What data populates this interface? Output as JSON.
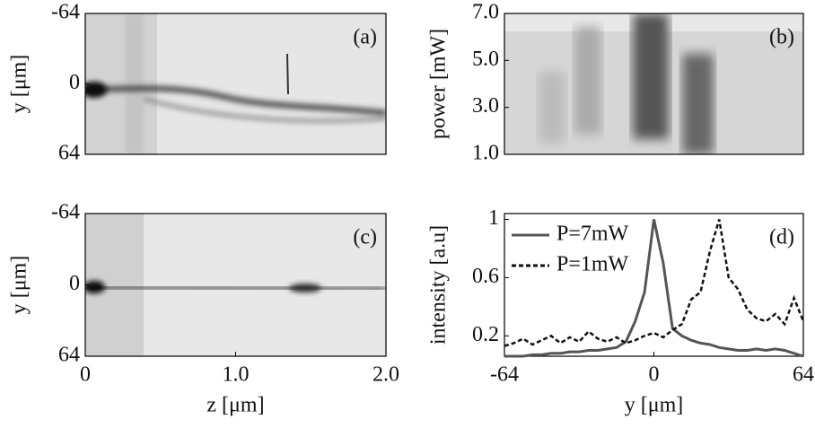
{
  "chart_data": [
    {
      "type": "image",
      "label": "(a)",
      "ylabel": "y [μm]",
      "ylim": [
        -64,
        64
      ],
      "yticks": [
        -64,
        0,
        64
      ],
      "y_reversed": true
    },
    {
      "type": "image",
      "label": "(b)",
      "ylabel": "power [mW]",
      "ylim": [
        1,
        7
      ],
      "yticks": [
        {
          "value": 1,
          "label": "1.0"
        },
        {
          "value": 3,
          "label": "3.0"
        },
        {
          "value": 5,
          "label": "5.0"
        },
        {
          "value": 7,
          "label": "7.0"
        }
      ]
    },
    {
      "type": "image",
      "label": "(c)",
      "ylabel": "y [μm]",
      "xlabel": "z [μm]",
      "ylim": [
        -64,
        64
      ],
      "yticks": [
        -64,
        0,
        64
      ],
      "y_reversed": true,
      "xlim": [
        0,
        2
      ],
      "xticks": [
        0,
        {
          "value": 1,
          "label": "1.0"
        },
        {
          "value": 2,
          "label": "2.0"
        }
      ]
    },
    {
      "type": "line",
      "label": "(d)",
      "ylabel": "intensity [a.u]",
      "xlabel": "y [μm]",
      "xlim": [
        -64,
        64
      ],
      "xticks": [
        -64,
        0,
        64
      ],
      "ylim": [
        0.06,
        1.04
      ],
      "yticks": [
        0.2,
        0.6,
        1
      ],
      "legend": "upper-left",
      "x": [
        -64,
        -60,
        -56,
        -52,
        -48,
        -44,
        -40,
        -36,
        -32,
        -28,
        -24,
        -20,
        -16,
        -12,
        -8,
        -4,
        0,
        4,
        8,
        12,
        16,
        20,
        24,
        28,
        32,
        36,
        40,
        44,
        48,
        52,
        56,
        60,
        64
      ],
      "series": [
        {
          "name": "P=7mW",
          "color": "#555555",
          "dash": false,
          "values": [
            0.06,
            0.06,
            0.06,
            0.07,
            0.07,
            0.08,
            0.08,
            0.09,
            0.09,
            0.1,
            0.1,
            0.11,
            0.12,
            0.16,
            0.3,
            0.5,
            1.0,
            0.7,
            0.25,
            0.2,
            0.17,
            0.15,
            0.14,
            0.12,
            0.11,
            0.1,
            0.1,
            0.11,
            0.1,
            0.11,
            0.1,
            0.08,
            0.06
          ]
        },
        {
          "name": "P=1mW",
          "color": "#111111",
          "dash": true,
          "values": [
            0.13,
            0.15,
            0.18,
            0.14,
            0.17,
            0.2,
            0.15,
            0.19,
            0.16,
            0.23,
            0.18,
            0.16,
            0.19,
            0.15,
            0.17,
            0.2,
            0.22,
            0.19,
            0.24,
            0.28,
            0.45,
            0.5,
            0.78,
            1.0,
            0.6,
            0.52,
            0.38,
            0.32,
            0.3,
            0.35,
            0.28,
            0.46,
            0.3
          ]
        }
      ]
    }
  ]
}
